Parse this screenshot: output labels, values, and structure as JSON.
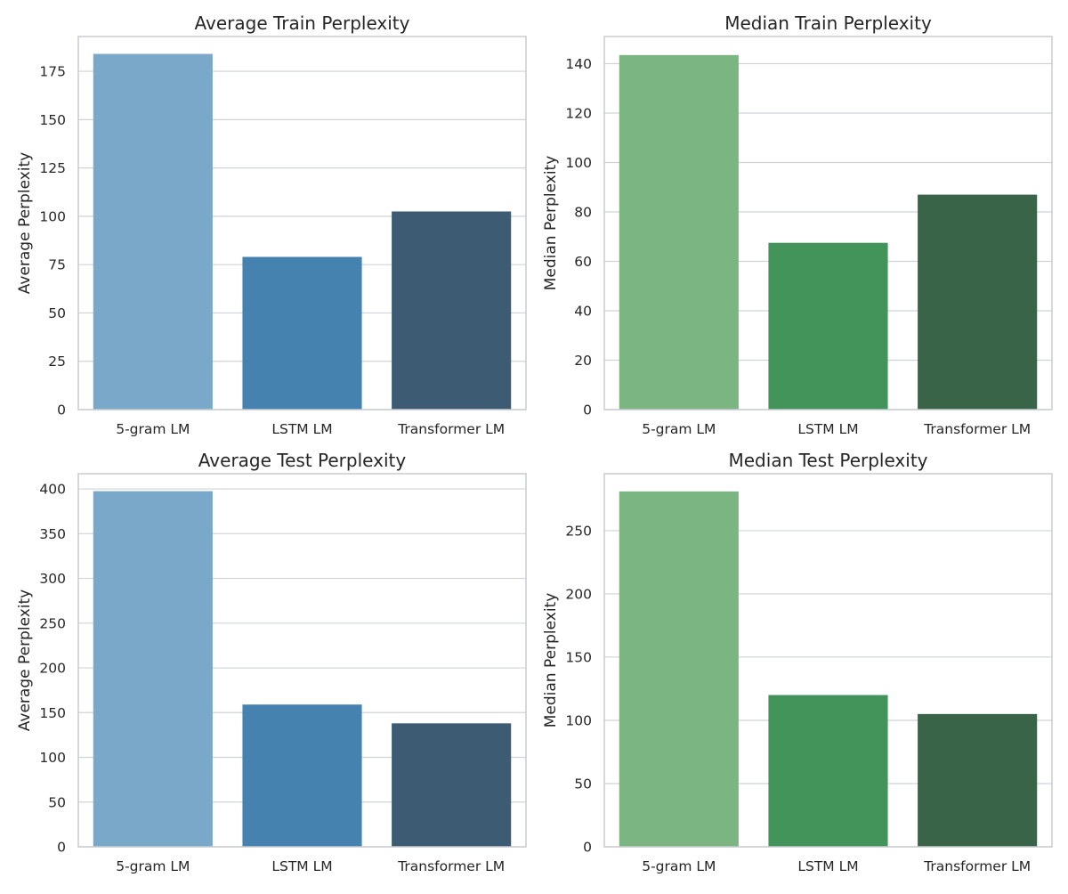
{
  "chart_data": [
    {
      "type": "bar",
      "title": "Average Train Perplexity",
      "xlabel": "",
      "ylabel": "Average Perplexity",
      "categories": [
        "5-gram LM",
        "LSTM LM",
        "Transformer LM"
      ],
      "values": [
        184,
        79,
        102.5
      ],
      "ylim": [
        0,
        193
      ],
      "yticks": [
        0,
        25,
        50,
        75,
        100,
        125,
        150,
        175
      ],
      "colors": [
        "#7aa8c9",
        "#4682b0",
        "#3d5c73"
      ],
      "grid": true
    },
    {
      "type": "bar",
      "title": "Median Train Perplexity",
      "xlabel": "",
      "ylabel": "Median Perplexity",
      "categories": [
        "5-gram LM",
        "LSTM LM",
        "Transformer LM"
      ],
      "values": [
        143.5,
        67.5,
        87
      ],
      "ylim": [
        0,
        151
      ],
      "yticks": [
        0,
        20,
        40,
        60,
        80,
        100,
        120,
        140
      ],
      "colors": [
        "#7bb582",
        "#42945a",
        "#3a6448"
      ],
      "grid": true
    },
    {
      "type": "bar",
      "title": "Average Test Perplexity",
      "xlabel": "",
      "ylabel": "Average Perplexity",
      "categories": [
        "5-gram LM",
        "LSTM LM",
        "Transformer LM"
      ],
      "values": [
        397.5,
        159,
        138
      ],
      "ylim": [
        0,
        417
      ],
      "yticks": [
        0,
        50,
        100,
        150,
        200,
        250,
        300,
        350,
        400
      ],
      "colors": [
        "#7aa8c9",
        "#4682b0",
        "#3d5c73"
      ],
      "grid": true
    },
    {
      "type": "bar",
      "title": "Median Test Perplexity",
      "xlabel": "",
      "ylabel": "Median Perplexity",
      "categories": [
        "5-gram LM",
        "LSTM LM",
        "Transformer LM"
      ],
      "values": [
        281,
        120,
        105
      ],
      "ylim": [
        0,
        295
      ],
      "yticks": [
        0,
        50,
        100,
        150,
        200,
        250
      ],
      "colors": [
        "#7bb582",
        "#42945a",
        "#3a6448"
      ],
      "grid": true
    }
  ]
}
